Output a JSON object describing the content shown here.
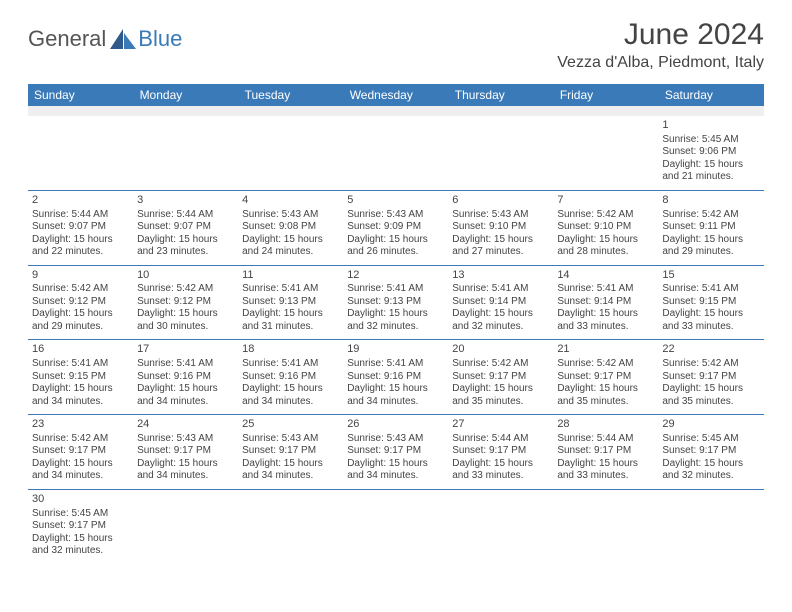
{
  "logo": {
    "text1": "General",
    "text2": "Blue"
  },
  "title": "June 2024",
  "location": "Vezza d'Alba, Piedmont, Italy",
  "colors": {
    "header_bg": "#3a7ab8",
    "header_fg": "#ffffff",
    "border": "#3a7ab8",
    "spacer_bg": "#efefef",
    "text": "#444444",
    "logo_gray": "#555555",
    "logo_blue": "#3a7ab8"
  },
  "weekdays": [
    "Sunday",
    "Monday",
    "Tuesday",
    "Wednesday",
    "Thursday",
    "Friday",
    "Saturday"
  ],
  "weeks": [
    [
      null,
      null,
      null,
      null,
      null,
      null,
      {
        "day": "1",
        "sunrise": "Sunrise: 5:45 AM",
        "sunset": "Sunset: 9:06 PM",
        "day1": "Daylight: 15 hours",
        "day2": "and 21 minutes."
      }
    ],
    [
      {
        "day": "2",
        "sunrise": "Sunrise: 5:44 AM",
        "sunset": "Sunset: 9:07 PM",
        "day1": "Daylight: 15 hours",
        "day2": "and 22 minutes."
      },
      {
        "day": "3",
        "sunrise": "Sunrise: 5:44 AM",
        "sunset": "Sunset: 9:07 PM",
        "day1": "Daylight: 15 hours",
        "day2": "and 23 minutes."
      },
      {
        "day": "4",
        "sunrise": "Sunrise: 5:43 AM",
        "sunset": "Sunset: 9:08 PM",
        "day1": "Daylight: 15 hours",
        "day2": "and 24 minutes."
      },
      {
        "day": "5",
        "sunrise": "Sunrise: 5:43 AM",
        "sunset": "Sunset: 9:09 PM",
        "day1": "Daylight: 15 hours",
        "day2": "and 26 minutes."
      },
      {
        "day": "6",
        "sunrise": "Sunrise: 5:43 AM",
        "sunset": "Sunset: 9:10 PM",
        "day1": "Daylight: 15 hours",
        "day2": "and 27 minutes."
      },
      {
        "day": "7",
        "sunrise": "Sunrise: 5:42 AM",
        "sunset": "Sunset: 9:10 PM",
        "day1": "Daylight: 15 hours",
        "day2": "and 28 minutes."
      },
      {
        "day": "8",
        "sunrise": "Sunrise: 5:42 AM",
        "sunset": "Sunset: 9:11 PM",
        "day1": "Daylight: 15 hours",
        "day2": "and 29 minutes."
      }
    ],
    [
      {
        "day": "9",
        "sunrise": "Sunrise: 5:42 AM",
        "sunset": "Sunset: 9:12 PM",
        "day1": "Daylight: 15 hours",
        "day2": "and 29 minutes."
      },
      {
        "day": "10",
        "sunrise": "Sunrise: 5:42 AM",
        "sunset": "Sunset: 9:12 PM",
        "day1": "Daylight: 15 hours",
        "day2": "and 30 minutes."
      },
      {
        "day": "11",
        "sunrise": "Sunrise: 5:41 AM",
        "sunset": "Sunset: 9:13 PM",
        "day1": "Daylight: 15 hours",
        "day2": "and 31 minutes."
      },
      {
        "day": "12",
        "sunrise": "Sunrise: 5:41 AM",
        "sunset": "Sunset: 9:13 PM",
        "day1": "Daylight: 15 hours",
        "day2": "and 32 minutes."
      },
      {
        "day": "13",
        "sunrise": "Sunrise: 5:41 AM",
        "sunset": "Sunset: 9:14 PM",
        "day1": "Daylight: 15 hours",
        "day2": "and 32 minutes."
      },
      {
        "day": "14",
        "sunrise": "Sunrise: 5:41 AM",
        "sunset": "Sunset: 9:14 PM",
        "day1": "Daylight: 15 hours",
        "day2": "and 33 minutes."
      },
      {
        "day": "15",
        "sunrise": "Sunrise: 5:41 AM",
        "sunset": "Sunset: 9:15 PM",
        "day1": "Daylight: 15 hours",
        "day2": "and 33 minutes."
      }
    ],
    [
      {
        "day": "16",
        "sunrise": "Sunrise: 5:41 AM",
        "sunset": "Sunset: 9:15 PM",
        "day1": "Daylight: 15 hours",
        "day2": "and 34 minutes."
      },
      {
        "day": "17",
        "sunrise": "Sunrise: 5:41 AM",
        "sunset": "Sunset: 9:16 PM",
        "day1": "Daylight: 15 hours",
        "day2": "and 34 minutes."
      },
      {
        "day": "18",
        "sunrise": "Sunrise: 5:41 AM",
        "sunset": "Sunset: 9:16 PM",
        "day1": "Daylight: 15 hours",
        "day2": "and 34 minutes."
      },
      {
        "day": "19",
        "sunrise": "Sunrise: 5:41 AM",
        "sunset": "Sunset: 9:16 PM",
        "day1": "Daylight: 15 hours",
        "day2": "and 34 minutes."
      },
      {
        "day": "20",
        "sunrise": "Sunrise: 5:42 AM",
        "sunset": "Sunset: 9:17 PM",
        "day1": "Daylight: 15 hours",
        "day2": "and 35 minutes."
      },
      {
        "day": "21",
        "sunrise": "Sunrise: 5:42 AM",
        "sunset": "Sunset: 9:17 PM",
        "day1": "Daylight: 15 hours",
        "day2": "and 35 minutes."
      },
      {
        "day": "22",
        "sunrise": "Sunrise: 5:42 AM",
        "sunset": "Sunset: 9:17 PM",
        "day1": "Daylight: 15 hours",
        "day2": "and 35 minutes."
      }
    ],
    [
      {
        "day": "23",
        "sunrise": "Sunrise: 5:42 AM",
        "sunset": "Sunset: 9:17 PM",
        "day1": "Daylight: 15 hours",
        "day2": "and 34 minutes."
      },
      {
        "day": "24",
        "sunrise": "Sunrise: 5:43 AM",
        "sunset": "Sunset: 9:17 PM",
        "day1": "Daylight: 15 hours",
        "day2": "and 34 minutes."
      },
      {
        "day": "25",
        "sunrise": "Sunrise: 5:43 AM",
        "sunset": "Sunset: 9:17 PM",
        "day1": "Daylight: 15 hours",
        "day2": "and 34 minutes."
      },
      {
        "day": "26",
        "sunrise": "Sunrise: 5:43 AM",
        "sunset": "Sunset: 9:17 PM",
        "day1": "Daylight: 15 hours",
        "day2": "and 34 minutes."
      },
      {
        "day": "27",
        "sunrise": "Sunrise: 5:44 AM",
        "sunset": "Sunset: 9:17 PM",
        "day1": "Daylight: 15 hours",
        "day2": "and 33 minutes."
      },
      {
        "day": "28",
        "sunrise": "Sunrise: 5:44 AM",
        "sunset": "Sunset: 9:17 PM",
        "day1": "Daylight: 15 hours",
        "day2": "and 33 minutes."
      },
      {
        "day": "29",
        "sunrise": "Sunrise: 5:45 AM",
        "sunset": "Sunset: 9:17 PM",
        "day1": "Daylight: 15 hours",
        "day2": "and 32 minutes."
      }
    ],
    [
      {
        "day": "30",
        "sunrise": "Sunrise: 5:45 AM",
        "sunset": "Sunset: 9:17 PM",
        "day1": "Daylight: 15 hours",
        "day2": "and 32 minutes."
      },
      null,
      null,
      null,
      null,
      null,
      null
    ]
  ]
}
